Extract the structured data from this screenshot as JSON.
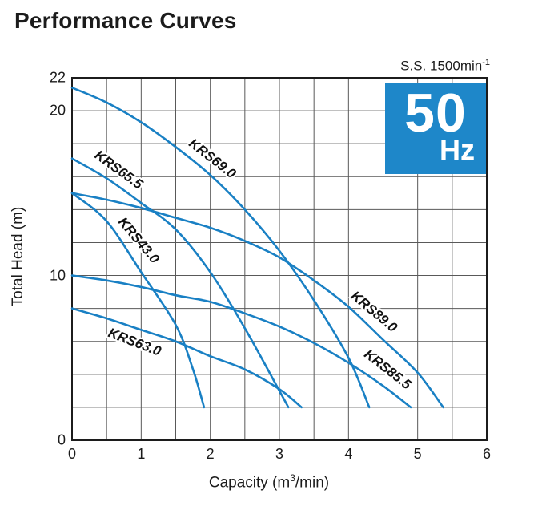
{
  "page": {
    "title": "Performance Curves"
  },
  "speed_note": {
    "main": "S.S. 1500min",
    "sup": "-1"
  },
  "badge": {
    "value": "50",
    "unit": "Hz",
    "color": "#1e87c9"
  },
  "chart_data": {
    "type": "line",
    "title": "Performance Curves",
    "xlabel_main": "Capacity (m",
    "xlabel_sup": "3",
    "xlabel_end": "/min)",
    "ylabel": "Total Head (m)",
    "xlim": [
      0,
      6
    ],
    "ylim": [
      0,
      22
    ],
    "grid": true,
    "x_grid_step": 0.5,
    "y_grid_step": 2,
    "x_ticks_labeled": [
      0,
      1,
      2,
      3,
      4,
      5,
      6
    ],
    "y_ticks_labeled": [
      0,
      10,
      20,
      22
    ],
    "line_color": "#1980c4",
    "grid_color": "#595959",
    "border_color": "#1c1c1c",
    "legend_position": "labels-on-curves",
    "series": [
      {
        "name": "KRS69.0",
        "points": [
          [
            0,
            21.4
          ],
          [
            0.5,
            20.5
          ],
          [
            1,
            19.3
          ],
          [
            1.5,
            17.8
          ],
          [
            2,
            16.1
          ],
          [
            2.5,
            14.0
          ],
          [
            3,
            11.5
          ],
          [
            3.5,
            8.5
          ],
          [
            4,
            5.0
          ],
          [
            4.3,
            2.0
          ]
        ],
        "label_at": {
          "x": 2.03,
          "y": 17.1,
          "angle": 38
        }
      },
      {
        "name": "KRS65.5",
        "points": [
          [
            0,
            17.1
          ],
          [
            0.5,
            15.9
          ],
          [
            1,
            14.4
          ],
          [
            1.5,
            12.8
          ],
          [
            2,
            10.2
          ],
          [
            2.5,
            6.8
          ],
          [
            3,
            3.0
          ],
          [
            3.13,
            2.0
          ]
        ],
        "label_at": {
          "x": 0.67,
          "y": 16.4,
          "angle": 36
        }
      },
      {
        "name": "KRS43.0",
        "points": [
          [
            0,
            15.0
          ],
          [
            0.5,
            13.3
          ],
          [
            1,
            10.2
          ],
          [
            1.5,
            7.0
          ],
          [
            1.75,
            4.3
          ],
          [
            1.91,
            2.0
          ]
        ],
        "label_at": {
          "x": 0.96,
          "y": 12.1,
          "angle": 50
        }
      },
      {
        "name": "KRS89.0",
        "points": [
          [
            0,
            15.0
          ],
          [
            0.5,
            14.6
          ],
          [
            1,
            14.1
          ],
          [
            1.5,
            13.5
          ],
          [
            2,
            12.9
          ],
          [
            2.5,
            12.1
          ],
          [
            3,
            11.1
          ],
          [
            3.5,
            9.7
          ],
          [
            4,
            8.1
          ],
          [
            4.5,
            6.1
          ],
          [
            5,
            4.1
          ],
          [
            5.37,
            2.0
          ]
        ],
        "label_at": {
          "x": 4.37,
          "y": 7.8,
          "angle": 40
        }
      },
      {
        "name": "KRS85.5",
        "points": [
          [
            0,
            10.0
          ],
          [
            0.5,
            9.7
          ],
          [
            1,
            9.3
          ],
          [
            1.5,
            8.8
          ],
          [
            2,
            8.4
          ],
          [
            2.5,
            7.7
          ],
          [
            3,
            6.9
          ],
          [
            3.5,
            5.9
          ],
          [
            4,
            4.7
          ],
          [
            4.5,
            3.3
          ],
          [
            4.9,
            2.0
          ]
        ],
        "label_at": {
          "x": 4.56,
          "y": 4.3,
          "angle": 38
        }
      },
      {
        "name": "KRS63.0",
        "points": [
          [
            0,
            8.0
          ],
          [
            0.5,
            7.4
          ],
          [
            1,
            6.7
          ],
          [
            1.5,
            6.0
          ],
          [
            2,
            5.1
          ],
          [
            2.5,
            4.3
          ],
          [
            3,
            3.1
          ],
          [
            3.32,
            2.0
          ]
        ],
        "label_at": {
          "x": 0.9,
          "y": 5.95,
          "angle": 21
        }
      }
    ]
  }
}
